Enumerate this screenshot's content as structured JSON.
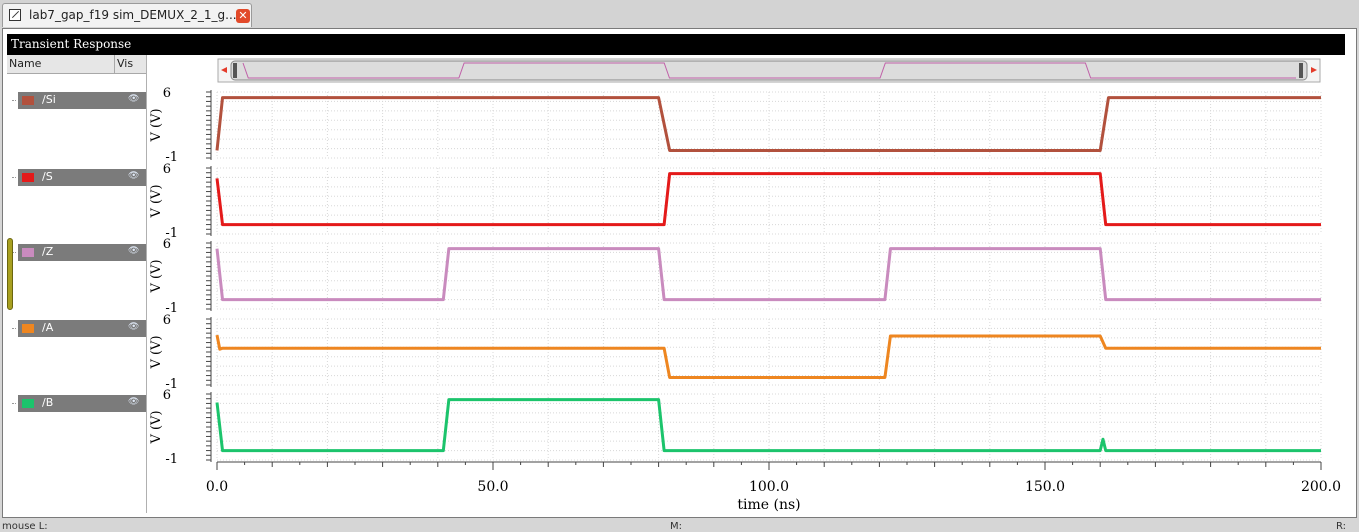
{
  "tab": {
    "title": "lab7_gap_f19 sim_DEMUX_2_1_g...",
    "close_glyph": "✕"
  },
  "window_title": "Transient Response",
  "columns": {
    "name": "Name",
    "vis": "Vis"
  },
  "signals": [
    {
      "name": "/Si",
      "color": "#b2513d"
    },
    {
      "name": "/S",
      "color": "#e41a1a"
    },
    {
      "name": "/Z",
      "color": "#c98bbe"
    },
    {
      "name": "/A",
      "color": "#ee8620"
    },
    {
      "name": "/B",
      "color": "#1cc46c"
    }
  ],
  "chart_data": {
    "type": "line",
    "xlabel": "time (ns)",
    "xlim": [
      0,
      200
    ],
    "x_ticks": [
      "0.0",
      "50.0",
      "100.0",
      "150.0",
      "200.0"
    ],
    "ylabel": "V (V)",
    "ylim": [
      -1,
      6
    ],
    "y_tick_labels": [
      "6",
      "-1"
    ],
    "grid": true,
    "series": [
      {
        "name": "/Si",
        "x": [
          0,
          1,
          80,
          82,
          160,
          161.5,
          200
        ],
        "y": [
          -0.2,
          5.4,
          5.4,
          -0.2,
          -0.2,
          5.4,
          5.4
        ]
      },
      {
        "name": "/S",
        "x": [
          0,
          1,
          81,
          82,
          160,
          161,
          200
        ],
        "y": [
          4.9,
          0,
          0,
          5.4,
          5.4,
          0,
          0
        ]
      },
      {
        "name": "/Z",
        "x": [
          0,
          1,
          41,
          42,
          80,
          81,
          121,
          122,
          160,
          161,
          200
        ],
        "y": [
          5.4,
          0,
          0,
          5.4,
          5.4,
          0,
          0,
          5.4,
          5.4,
          0,
          0
        ]
      },
      {
        "name": "/A",
        "x": [
          0,
          0.5,
          1,
          81,
          82,
          121,
          122,
          160,
          161,
          200
        ],
        "y": [
          4.3,
          2.8,
          2.9,
          2.9,
          -0.2,
          -0.2,
          4.2,
          4.2,
          2.9,
          2.9
        ]
      },
      {
        "name": "/B",
        "x": [
          0,
          1,
          41,
          42,
          80,
          81,
          160,
          160.5,
          161,
          200
        ],
        "y": [
          5.1,
          0,
          0,
          5.4,
          5.4,
          0,
          0,
          1.2,
          0,
          0
        ]
      }
    ],
    "overview": {
      "x": [
        0,
        1,
        41,
        42,
        80,
        81,
        121,
        122,
        160,
        161,
        200
      ],
      "y": [
        1,
        0,
        0,
        1,
        1,
        0,
        0,
        1,
        1,
        0,
        0
      ]
    }
  },
  "status": {
    "left": "mouse L:",
    "mid": "M:",
    "right": "R:"
  }
}
